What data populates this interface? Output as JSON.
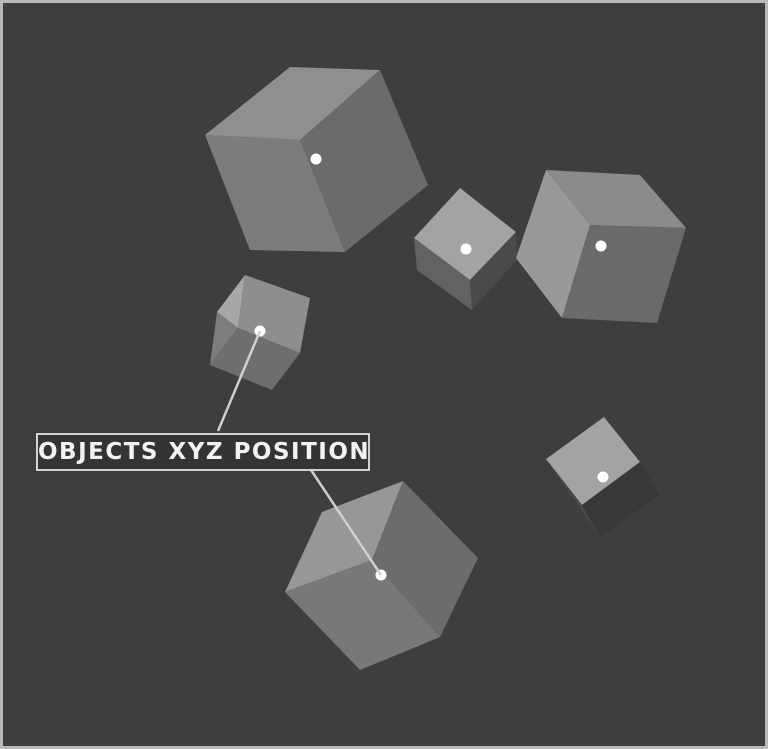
{
  "label": {
    "text": "OBJECTS XYZ POSITIONS"
  },
  "colors": {
    "background": "#3e3e3e",
    "frame": "#b9b9b9",
    "face_light": "#a2a2a2",
    "face_mid": "#8a8a8a",
    "face_dark": "#6a6b6b",
    "face_shadow": "#3a3837",
    "origin_dot": "#ffffff",
    "leader_line": "#cfcfcf"
  },
  "scene": {
    "object_count": 6,
    "highlighted_objects": 2,
    "dots_shown": 6
  }
}
